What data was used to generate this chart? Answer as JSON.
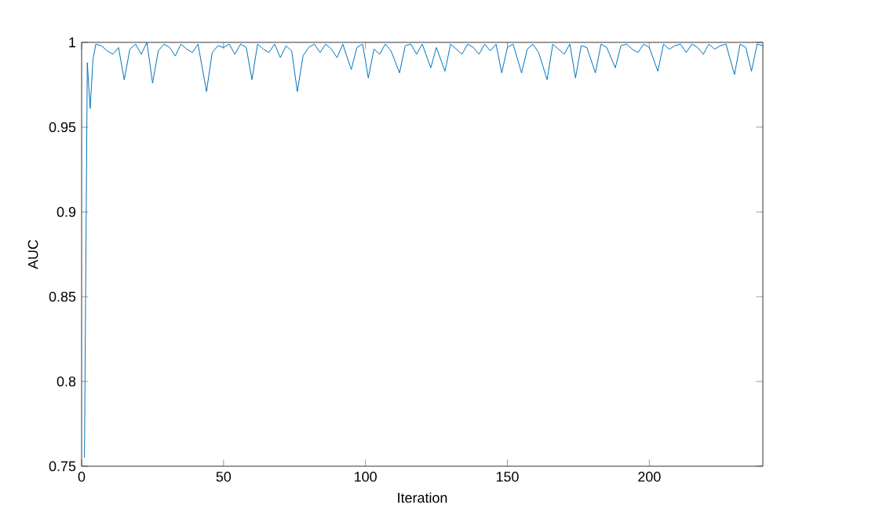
{
  "chart_data": {
    "type": "line",
    "xlabel": "Iteration",
    "ylabel": "AUC",
    "xlim": [
      0,
      240
    ],
    "ylim": [
      0.75,
      1
    ],
    "xticks": [
      0,
      50,
      100,
      150,
      200
    ],
    "yticks": [
      0.75,
      0.8,
      0.85,
      0.9,
      0.95,
      1
    ],
    "grid": false,
    "marker": "none",
    "line_style": "solid",
    "series": [
      {
        "color": "#0072bd",
        "x": [
          1,
          2,
          3,
          4,
          5,
          7,
          9,
          11,
          13,
          15,
          17,
          19,
          21,
          23,
          25,
          27,
          29,
          31,
          33,
          35,
          37,
          39,
          41,
          44,
          46,
          48,
          50,
          52,
          54,
          56,
          58,
          60,
          62,
          64,
          66,
          68,
          70,
          72,
          74,
          76,
          78,
          80,
          82,
          84,
          86,
          88,
          90,
          92,
          95,
          97,
          99,
          101,
          103,
          105,
          107,
          109,
          112,
          114,
          116,
          118,
          120,
          123,
          125,
          128,
          130,
          132,
          134,
          136,
          138,
          140,
          142,
          144,
          146,
          148,
          150,
          152,
          155,
          157,
          159,
          161,
          164,
          166,
          168,
          170,
          172,
          174,
          176,
          178,
          181,
          183,
          185,
          188,
          190,
          192,
          194,
          196,
          198,
          200,
          203,
          205,
          207,
          209,
          211,
          213,
          215,
          217,
          219,
          221,
          223,
          225,
          227,
          230,
          232,
          234,
          236,
          238,
          240
        ],
        "values": [
          0.755,
          0.988,
          0.961,
          0.99,
          0.999,
          0.998,
          0.995,
          0.993,
          0.997,
          0.978,
          0.996,
          0.999,
          0.993,
          1.0,
          0.976,
          0.995,
          0.999,
          0.997,
          0.992,
          0.999,
          0.996,
          0.994,
          0.999,
          0.971,
          0.994,
          0.998,
          0.997,
          0.999,
          0.993,
          0.999,
          0.997,
          0.978,
          0.999,
          0.996,
          0.994,
          0.999,
          0.991,
          0.998,
          0.995,
          0.971,
          0.992,
          0.997,
          0.999,
          0.994,
          0.999,
          0.996,
          0.991,
          0.999,
          0.984,
          0.997,
          0.999,
          0.979,
          0.996,
          0.993,
          0.999,
          0.995,
          0.982,
          0.998,
          0.999,
          0.993,
          0.999,
          0.985,
          0.997,
          0.983,
          0.999,
          0.996,
          0.993,
          0.999,
          0.997,
          0.993,
          0.999,
          0.995,
          0.999,
          0.982,
          0.997,
          0.999,
          0.982,
          0.996,
          0.999,
          0.994,
          0.978,
          0.999,
          0.996,
          0.993,
          0.999,
          0.979,
          0.998,
          0.997,
          0.982,
          0.999,
          0.997,
          0.985,
          0.998,
          0.999,
          0.996,
          0.994,
          0.999,
          0.997,
          0.983,
          0.999,
          0.996,
          0.998,
          0.999,
          0.994,
          0.999,
          0.997,
          0.993,
          0.999,
          0.996,
          0.998,
          0.999,
          0.981,
          0.999,
          0.997,
          0.983,
          0.999,
          0.998
        ]
      }
    ]
  }
}
